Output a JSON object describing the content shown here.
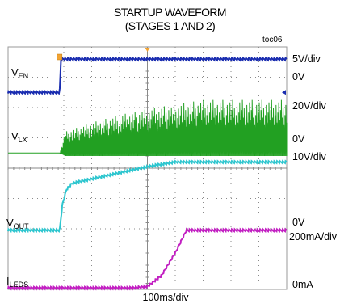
{
  "title": {
    "line1": "STARTUP WAVEFORM",
    "line2": "(STAGES 1 AND 2)"
  },
  "figure_id": "toc06",
  "x_axis": {
    "label": "100ms/div"
  },
  "channels": {
    "ven": {
      "name": "V",
      "sub": "EN",
      "scale": "5V/div",
      "zero": "0V",
      "color": "#1a2db0"
    },
    "vlx": {
      "name": "V",
      "sub": "LX",
      "scale": "20V/div",
      "zero": "0V",
      "color": "#22a022"
    },
    "vout": {
      "name": "V",
      "sub": "OUT",
      "scale": "10V/div",
      "zero": "0V",
      "color": "#2ec6cf"
    },
    "ileds": {
      "name": "I",
      "sub": "LEDS",
      "scale": "200mA/div",
      "zero": "0mA",
      "color": "#c21fc2"
    }
  },
  "chart_data": {
    "type": "line",
    "title": "STARTUP WAVEFORM (STAGES 1 AND 2)",
    "xlabel": "100ms/div",
    "x_divisions": 10,
    "y_divisions": 8,
    "grid": true,
    "xlim": [
      0,
      10
    ],
    "series": [
      {
        "name": "VEN",
        "unit": "div",
        "x": [
          0,
          1.85,
          1.9,
          10
        ],
        "values": [
          6.5,
          6.5,
          7.6,
          7.6
        ]
      },
      {
        "name": "VLX",
        "unit": "div",
        "envelope": true,
        "x": [
          0,
          1.85,
          2.05,
          3.0,
          4.0,
          5.0,
          6.0,
          7.0,
          10.0
        ],
        "lower": [
          4.5,
          4.5,
          4.4,
          4.4,
          4.4,
          4.4,
          4.4,
          4.4,
          4.4
        ],
        "upper": [
          4.5,
          4.5,
          5.2,
          5.5,
          5.75,
          5.95,
          6.1,
          6.25,
          6.25
        ]
      },
      {
        "name": "VOUT",
        "unit": "div",
        "x": [
          0,
          1.85,
          1.95,
          2.1,
          2.3,
          5.0,
          6.0,
          10.0
        ],
        "values": [
          1.95,
          1.95,
          2.8,
          3.3,
          3.5,
          4.05,
          4.2,
          4.2
        ]
      },
      {
        "name": "ILEDS",
        "unit": "div",
        "x": [
          0,
          4.5,
          5.0,
          5.5,
          6.0,
          6.4,
          10.0
        ],
        "values": [
          0.05,
          0.05,
          0.1,
          0.45,
          1.2,
          1.95,
          1.95
        ]
      }
    ]
  }
}
